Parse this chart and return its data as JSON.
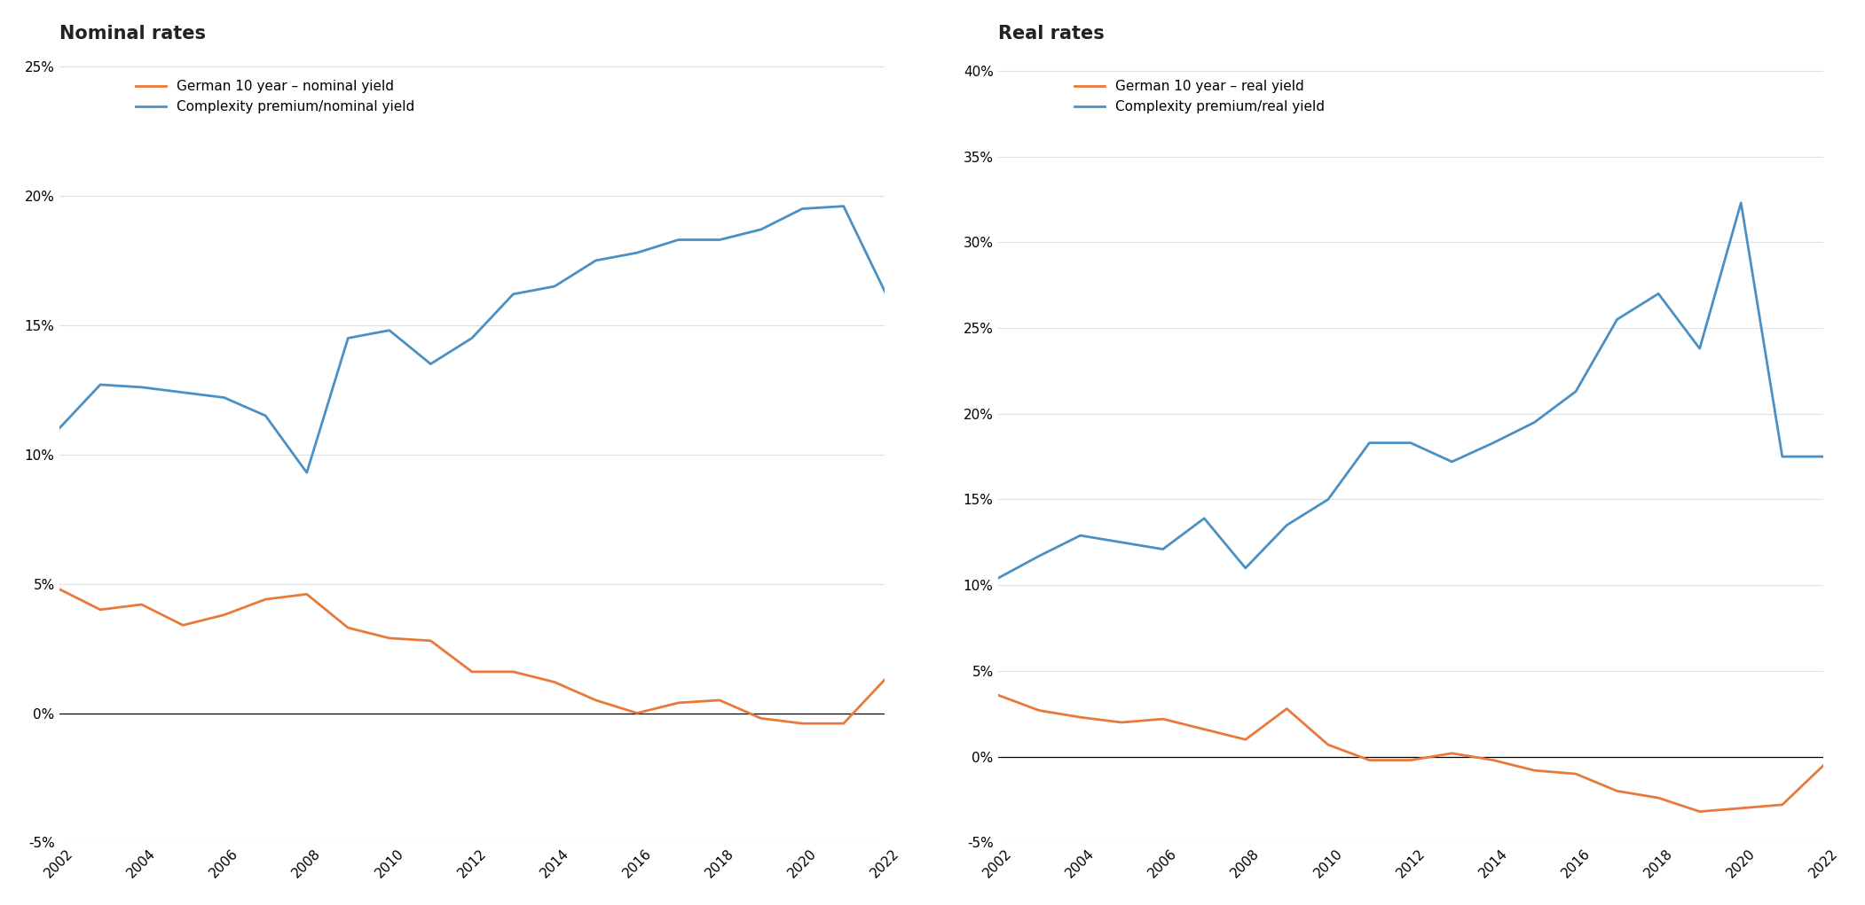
{
  "nom_years": [
    2002,
    2003,
    2004,
    2005,
    2006,
    2007,
    2008,
    2009,
    2010,
    2011,
    2012,
    2013,
    2014,
    2015,
    2016,
    2017,
    2018,
    2019,
    2020,
    2021,
    2022
  ],
  "nom_german": [
    0.048,
    0.04,
    0.042,
    0.034,
    0.038,
    0.044,
    0.046,
    0.033,
    0.029,
    0.028,
    0.016,
    0.016,
    0.012,
    0.005,
    0.0,
    0.004,
    0.005,
    -0.002,
    -0.004,
    -0.004,
    0.013
  ],
  "nom_complex": [
    0.11,
    0.127,
    0.126,
    0.124,
    0.122,
    0.115,
    0.093,
    0.145,
    0.148,
    0.135,
    0.145,
    0.162,
    0.165,
    0.175,
    0.178,
    0.183,
    0.183,
    0.187,
    0.195,
    0.196,
    0.163
  ],
  "real_years": [
    2002,
    2003,
    2004,
    2005,
    2006,
    2007,
    2008,
    2009,
    2010,
    2011,
    2012,
    2013,
    2014,
    2015,
    2016,
    2017,
    2018,
    2019,
    2020,
    2021,
    2022
  ],
  "real_german": [
    0.036,
    0.027,
    0.023,
    0.02,
    0.022,
    0.016,
    0.01,
    0.028,
    0.007,
    -0.002,
    -0.002,
    0.002,
    -0.002,
    -0.008,
    -0.01,
    -0.02,
    -0.024,
    -0.032,
    -0.03,
    -0.028,
    -0.005
  ],
  "real_complex": [
    0.104,
    0.117,
    0.129,
    0.125,
    0.121,
    0.139,
    0.11,
    0.135,
    0.15,
    0.183,
    0.183,
    0.172,
    0.183,
    0.195,
    0.213,
    0.255,
    0.27,
    0.238,
    0.323,
    0.175,
    0.175
  ],
  "title_left": "Nominal rates",
  "title_right": "Real rates",
  "legend_left_1": "German 10 year – nominal yield",
  "legend_left_2": "Complexity premium/nominal yield",
  "legend_right_1": "German 10 year – real yield",
  "legend_right_2": "Complexity premium/real yield",
  "orange_color": "#E8793A",
  "blue_color": "#4A90C4",
  "ylim_left": [
    -0.05,
    0.255
  ],
  "yticks_left": [
    -0.05,
    0.0,
    0.05,
    0.1,
    0.15,
    0.2,
    0.25
  ],
  "ylim_right": [
    -0.05,
    0.41
  ],
  "yticks_right": [
    -0.05,
    0.0,
    0.05,
    0.1,
    0.15,
    0.2,
    0.25,
    0.3,
    0.35,
    0.4
  ],
  "xlim": [
    2002,
    2022
  ],
  "xticks": [
    2002,
    2004,
    2006,
    2008,
    2010,
    2012,
    2014,
    2016,
    2018,
    2020,
    2022
  ]
}
